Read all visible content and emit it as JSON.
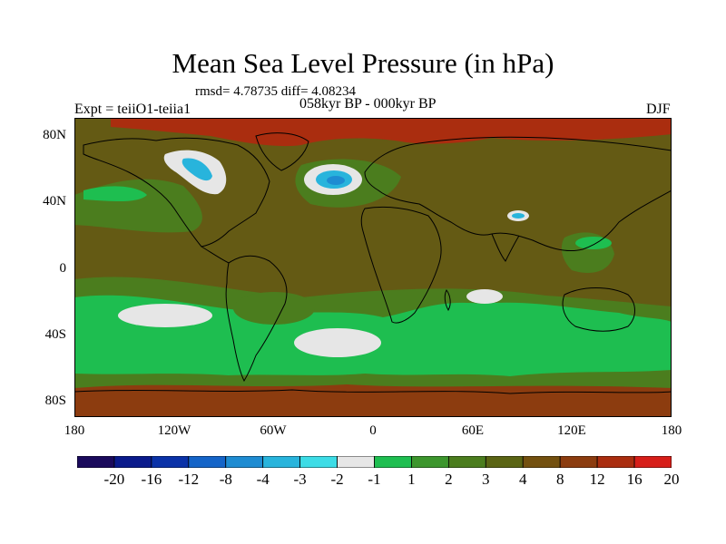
{
  "title": "Mean Sea Level Pressure (in hPa)",
  "stats": "rmsd= 4.78735  diff= 4.08234",
  "experiment": "Expt = teiiO1-teiia1",
  "period": "058kyr BP - 000kyr BP",
  "season": "DJF",
  "lat_labels": [
    "80N",
    "40N",
    "0",
    "40S",
    "80S"
  ],
  "lon_labels": [
    "180",
    "120W",
    "60W",
    "0",
    "60E",
    "120E",
    "180"
  ],
  "colorbar": {
    "colors": [
      "#1a0a5c",
      "#0a1a8c",
      "#0a32a8",
      "#1464c8",
      "#1e8cd2",
      "#28b4dc",
      "#3cdce6",
      "#e6e6e6",
      "#1ebe50",
      "#3c962d",
      "#4b7d1e",
      "#5a6414",
      "#73500f",
      "#8c3c0f",
      "#aa2d0f",
      "#d71e19"
    ],
    "labels": [
      "-20",
      "-16",
      "-12",
      "-8",
      "-4",
      "-3",
      "-2",
      "-1",
      "1",
      "2",
      "3",
      "4",
      "8",
      "12",
      "16",
      "20"
    ]
  },
  "palette": {
    "ocean_base": "#645a14",
    "mid_lat_band": "#4b7d1e",
    "storm_band": "#1ebe50",
    "high_polar": "#aa2d0f",
    "deep_south": "#8c3c0f",
    "near_zero": "#e6e6e6",
    "negative_light": "#28b4dc",
    "negative_deep": "#1e8cd2"
  }
}
